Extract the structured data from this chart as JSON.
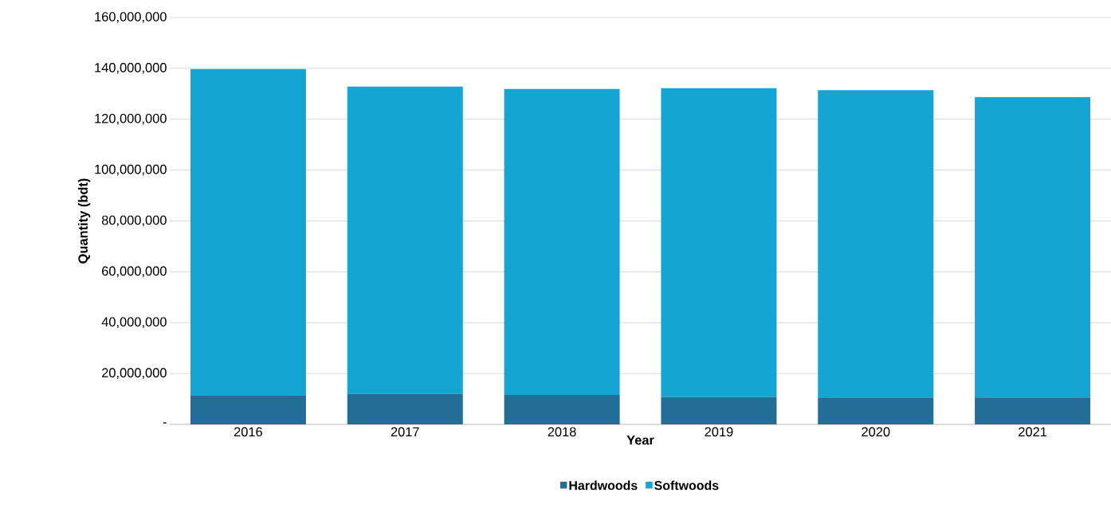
{
  "chart_data": {
    "type": "bar",
    "stacked": true,
    "xlabel": "Year",
    "ylabel": "Quantity (bdt)",
    "categories": [
      "2016",
      "2017",
      "2018",
      "2019",
      "2020",
      "2021"
    ],
    "series": [
      {
        "name": "Hardwoods",
        "color": "#236e96",
        "values": [
          11300000,
          12000000,
          11600000,
          10800000,
          10600000,
          10600000
        ]
      },
      {
        "name": "Softwoods",
        "color": "#15a5d3",
        "values": [
          128400000,
          120800000,
          120300000,
          121400000,
          120800000,
          118100000
        ]
      }
    ],
    "ylim": [
      0,
      160000000
    ],
    "yticks": [
      {
        "value": 0,
        "label": "-"
      },
      {
        "value": 20000000,
        "label": "20,000,000"
      },
      {
        "value": 40000000,
        "label": "40,000,000"
      },
      {
        "value": 60000000,
        "label": "60,000,000"
      },
      {
        "value": 80000000,
        "label": "80,000,000"
      },
      {
        "value": 100000000,
        "label": "100,000,000"
      },
      {
        "value": 120000000,
        "label": "120,000,000"
      },
      {
        "value": 140000000,
        "label": "140,000,000"
      },
      {
        "value": 160000000,
        "label": "160,000,000"
      }
    ],
    "grid": "y",
    "legend": "bottom"
  }
}
